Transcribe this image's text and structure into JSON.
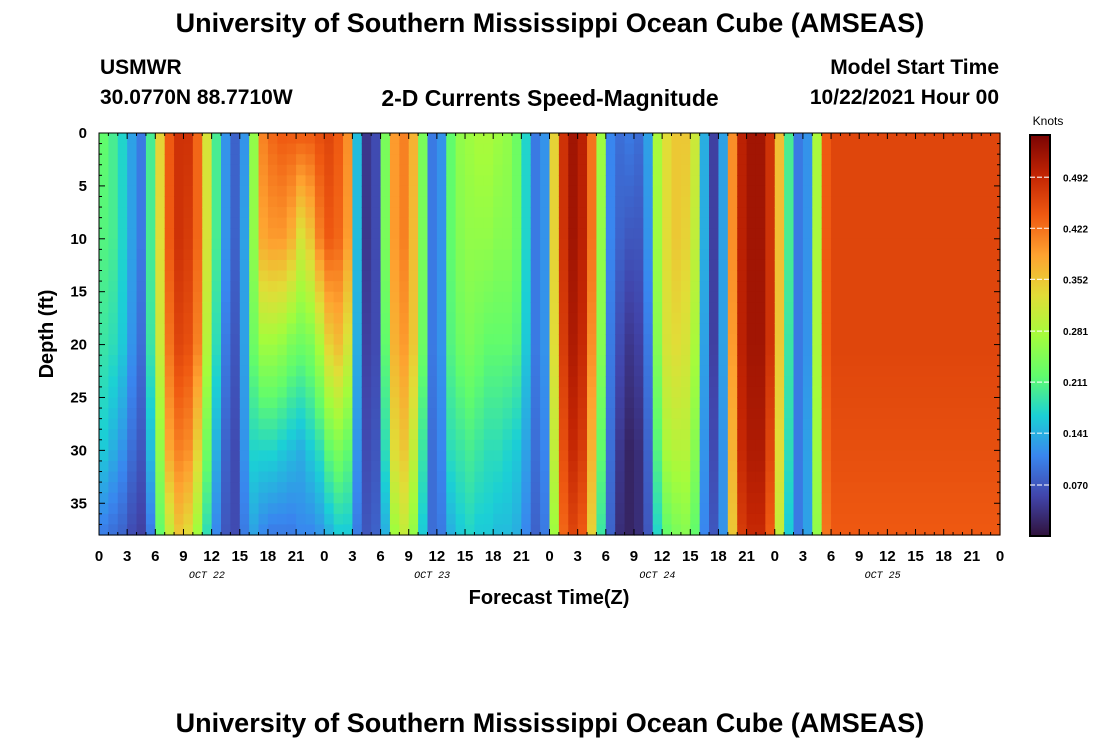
{
  "page": {
    "title_top": "University of Southern Mississippi Ocean Cube (AMSEAS)",
    "title_bottom": "University of Southern Mississippi Ocean Cube (AMSEAS)",
    "station": "USMWR",
    "coords": "30.0770N  88.7710W",
    "subtitle": "2-D Currents Speed-Magnitude",
    "start_label": "Model Start Time",
    "start_value": "10/22/2021 Hour 00"
  },
  "chart_data": {
    "type": "heatmap",
    "title": "2-D Currents Speed-Magnitude",
    "xlabel": "Forecast Time(Z)",
    "ylabel": "Depth (ft)",
    "x_unit": "forecast hour from 10/22/2021 00Z",
    "x_range": [
      0,
      96
    ],
    "y_range": [
      0,
      38
    ],
    "y_inverted": true,
    "x_tick_labels": [
      "0",
      "3",
      "6",
      "9",
      "12",
      "15",
      "18",
      "21",
      "0",
      "3",
      "6",
      "9",
      "12",
      "15",
      "18",
      "21",
      "0",
      "3",
      "6",
      "9",
      "12",
      "15",
      "18",
      "21",
      "0",
      "3",
      "6",
      "9",
      "12",
      "15",
      "18",
      "21",
      "0"
    ],
    "y_ticks": [
      0,
      5,
      10,
      15,
      20,
      25,
      30,
      35
    ],
    "date_labels": [
      {
        "text": "OCT 22",
        "hour": 11.5
      },
      {
        "text": "OCT 23",
        "hour": 35.5
      },
      {
        "text": "OCT 24",
        "hour": 59.5
      },
      {
        "text": "OCT 25",
        "hour": 83.5
      }
    ],
    "colorbar": {
      "label": "Knots",
      "min": 0.0,
      "max": 0.55,
      "ticks": [
        "0.070",
        "0.141",
        "0.211",
        "0.281",
        "0.352",
        "0.422",
        "0.492"
      ],
      "tick_values": [
        0.07,
        0.141,
        0.211,
        0.281,
        0.352,
        0.422,
        0.492
      ]
    },
    "depth_profile_depths": [
      0,
      10,
      20,
      30,
      38
    ],
    "speed_columns": [
      {
        "hour": 0,
        "speed": [
          0.22,
          0.21,
          0.19,
          0.16,
          0.1
        ]
      },
      {
        "hour": 1,
        "speed": [
          0.2,
          0.2,
          0.18,
          0.14,
          0.09
        ]
      },
      {
        "hour": 2,
        "speed": [
          0.17,
          0.17,
          0.16,
          0.12,
          0.08
        ]
      },
      {
        "hour": 3,
        "speed": [
          0.13,
          0.13,
          0.12,
          0.09,
          0.06
        ]
      },
      {
        "hour": 4,
        "speed": [
          0.1,
          0.1,
          0.09,
          0.07,
          0.05
        ]
      },
      {
        "hour": 5,
        "speed": [
          0.2,
          0.2,
          0.19,
          0.15,
          0.1
        ]
      },
      {
        "hour": 6,
        "speed": [
          0.34,
          0.33,
          0.31,
          0.26,
          0.22
        ]
      },
      {
        "hour": 7,
        "speed": [
          0.44,
          0.44,
          0.42,
          0.38,
          0.3
        ]
      },
      {
        "hour": 8,
        "speed": [
          0.48,
          0.48,
          0.46,
          0.41,
          0.35
        ]
      },
      {
        "hour": 9,
        "speed": [
          0.48,
          0.47,
          0.45,
          0.4,
          0.33
        ]
      },
      {
        "hour": 10,
        "speed": [
          0.43,
          0.43,
          0.41,
          0.34,
          0.27
        ]
      },
      {
        "hour": 11,
        "speed": [
          0.32,
          0.32,
          0.29,
          0.23,
          0.18
        ]
      },
      {
        "hour": 12,
        "speed": [
          0.2,
          0.2,
          0.18,
          0.14,
          0.11
        ]
      },
      {
        "hour": 13,
        "speed": [
          0.12,
          0.12,
          0.1,
          0.08,
          0.07
        ]
      },
      {
        "hour": 14,
        "speed": [
          0.08,
          0.08,
          0.07,
          0.06,
          0.06
        ]
      },
      {
        "hour": 15,
        "speed": [
          0.12,
          0.13,
          0.13,
          0.12,
          0.1
        ]
      },
      {
        "hour": 16,
        "speed": [
          0.26,
          0.26,
          0.23,
          0.17,
          0.13
        ]
      },
      {
        "hour": 17,
        "speed": [
          0.41,
          0.38,
          0.27,
          0.17,
          0.11
        ]
      },
      {
        "hour": 18,
        "speed": [
          0.43,
          0.39,
          0.27,
          0.17,
          0.1
        ]
      },
      {
        "hour": 19,
        "speed": [
          0.44,
          0.39,
          0.26,
          0.16,
          0.1
        ]
      },
      {
        "hour": 20,
        "speed": [
          0.44,
          0.37,
          0.24,
          0.15,
          0.1
        ]
      },
      {
        "hour": 21,
        "speed": [
          0.44,
          0.32,
          0.23,
          0.14,
          0.11
        ]
      },
      {
        "hour": 22,
        "speed": [
          0.44,
          0.35,
          0.24,
          0.16,
          0.11
        ]
      },
      {
        "hour": 23,
        "speed": [
          0.45,
          0.41,
          0.28,
          0.18,
          0.12
        ]
      },
      {
        "hour": 24,
        "speed": [
          0.46,
          0.44,
          0.34,
          0.22,
          0.14
        ]
      },
      {
        "hour": 25,
        "speed": [
          0.44,
          0.43,
          0.36,
          0.24,
          0.16
        ]
      },
      {
        "hour": 26,
        "speed": [
          0.4,
          0.39,
          0.32,
          0.22,
          0.16
        ]
      },
      {
        "hour": 27,
        "speed": [
          0.15,
          0.15,
          0.14,
          0.12,
          0.1
        ]
      },
      {
        "hour": 28,
        "speed": [
          0.04,
          0.04,
          0.05,
          0.06,
          0.07
        ]
      },
      {
        "hour": 29,
        "speed": [
          0.06,
          0.06,
          0.06,
          0.07,
          0.08
        ]
      },
      {
        "hour": 30,
        "speed": [
          0.24,
          0.24,
          0.22,
          0.18,
          0.14
        ]
      },
      {
        "hour": 31,
        "speed": [
          0.39,
          0.39,
          0.37,
          0.33,
          0.27
        ]
      },
      {
        "hour": 32,
        "speed": [
          0.41,
          0.41,
          0.39,
          0.35,
          0.3
        ]
      },
      {
        "hour": 33,
        "speed": [
          0.37,
          0.36,
          0.35,
          0.3,
          0.26
        ]
      },
      {
        "hour": 34,
        "speed": [
          0.24,
          0.24,
          0.23,
          0.19,
          0.16
        ]
      },
      {
        "hour": 35,
        "speed": [
          0.1,
          0.1,
          0.1,
          0.09,
          0.09
        ]
      },
      {
        "hour": 36,
        "speed": [
          0.12,
          0.12,
          0.12,
          0.11,
          0.1
        ]
      },
      {
        "hour": 37,
        "speed": [
          0.22,
          0.22,
          0.21,
          0.18,
          0.14
        ]
      },
      {
        "hour": 38,
        "speed": [
          0.26,
          0.25,
          0.23,
          0.19,
          0.16
        ]
      },
      {
        "hour": 39,
        "speed": [
          0.27,
          0.26,
          0.24,
          0.2,
          0.17
        ]
      },
      {
        "hour": 40,
        "speed": [
          0.28,
          0.26,
          0.23,
          0.19,
          0.16
        ]
      },
      {
        "hour": 41,
        "speed": [
          0.28,
          0.26,
          0.22,
          0.18,
          0.16
        ]
      },
      {
        "hour": 42,
        "speed": [
          0.27,
          0.25,
          0.22,
          0.18,
          0.15
        ]
      },
      {
        "hour": 43,
        "speed": [
          0.26,
          0.25,
          0.22,
          0.17,
          0.15
        ]
      },
      {
        "hour": 44,
        "speed": [
          0.23,
          0.23,
          0.21,
          0.16,
          0.14
        ]
      },
      {
        "hour": 45,
        "speed": [
          0.17,
          0.17,
          0.16,
          0.13,
          0.11
        ]
      },
      {
        "hour": 46,
        "speed": [
          0.1,
          0.1,
          0.1,
          0.09,
          0.08
        ]
      },
      {
        "hour": 47,
        "speed": [
          0.12,
          0.12,
          0.12,
          0.11,
          0.1
        ]
      },
      {
        "hour": 48,
        "speed": [
          0.34,
          0.34,
          0.33,
          0.3,
          0.27
        ]
      },
      {
        "hour": 49,
        "speed": [
          0.48,
          0.48,
          0.47,
          0.45,
          0.43
        ]
      },
      {
        "hour": 50,
        "speed": [
          0.52,
          0.52,
          0.51,
          0.49,
          0.46
        ]
      },
      {
        "hour": 51,
        "speed": [
          0.5,
          0.5,
          0.49,
          0.47,
          0.44
        ]
      },
      {
        "hour": 52,
        "speed": [
          0.42,
          0.42,
          0.4,
          0.37,
          0.34
        ]
      },
      {
        "hour": 53,
        "speed": [
          0.27,
          0.26,
          0.25,
          0.22,
          0.19
        ]
      },
      {
        "hour": 54,
        "speed": [
          0.11,
          0.11,
          0.1,
          0.09,
          0.08
        ]
      },
      {
        "hour": 55,
        "speed": [
          0.09,
          0.08,
          0.06,
          0.04,
          0.03
        ]
      },
      {
        "hour": 56,
        "speed": [
          0.1,
          0.07,
          0.04,
          0.02,
          0.02
        ]
      },
      {
        "hour": 57,
        "speed": [
          0.09,
          0.07,
          0.05,
          0.03,
          0.03
        ]
      },
      {
        "hour": 58,
        "speed": [
          0.13,
          0.12,
          0.1,
          0.08,
          0.07
        ]
      },
      {
        "hour": 59,
        "speed": [
          0.28,
          0.27,
          0.25,
          0.21,
          0.17
        ]
      },
      {
        "hour": 60,
        "speed": [
          0.33,
          0.33,
          0.32,
          0.28,
          0.22
        ]
      },
      {
        "hour": 61,
        "speed": [
          0.35,
          0.35,
          0.33,
          0.29,
          0.24
        ]
      },
      {
        "hour": 62,
        "speed": [
          0.35,
          0.34,
          0.32,
          0.29,
          0.25
        ]
      },
      {
        "hour": 63,
        "speed": [
          0.31,
          0.3,
          0.28,
          0.25,
          0.22
        ]
      },
      {
        "hour": 64,
        "speed": [
          0.14,
          0.14,
          0.13,
          0.12,
          0.11
        ]
      },
      {
        "hour": 65,
        "speed": [
          0.05,
          0.05,
          0.05,
          0.06,
          0.07
        ]
      },
      {
        "hour": 66,
        "speed": [
          0.13,
          0.13,
          0.13,
          0.12,
          0.12
        ]
      },
      {
        "hour": 67,
        "speed": [
          0.4,
          0.4,
          0.39,
          0.37,
          0.35
        ]
      },
      {
        "hour": 68,
        "speed": [
          0.5,
          0.5,
          0.5,
          0.49,
          0.47
        ]
      },
      {
        "hour": 69,
        "speed": [
          0.52,
          0.52,
          0.52,
          0.51,
          0.49
        ]
      },
      {
        "hour": 70,
        "speed": [
          0.52,
          0.52,
          0.52,
          0.51,
          0.49
        ]
      },
      {
        "hour": 71,
        "speed": [
          0.48,
          0.48,
          0.48,
          0.46,
          0.44
        ]
      },
      {
        "hour": 72,
        "speed": [
          0.36,
          0.36,
          0.35,
          0.33,
          0.3
        ]
      },
      {
        "hour": 73,
        "speed": [
          0.2,
          0.2,
          0.19,
          0.18,
          0.16
        ]
      },
      {
        "hour": 74,
        "speed": [
          0.1,
          0.1,
          0.1,
          0.1,
          0.1
        ]
      },
      {
        "hour": 75,
        "speed": [
          0.12,
          0.12,
          0.12,
          0.13,
          0.13
        ]
      },
      {
        "hour": 76,
        "speed": [
          0.28,
          0.28,
          0.28,
          0.27,
          0.26
        ]
      },
      {
        "hour": 77,
        "speed": [
          0.44,
          0.44,
          0.44,
          0.43,
          0.42
        ]
      },
      {
        "hour": 78,
        "speed": [
          0.46,
          0.46,
          0.46,
          0.45,
          0.44
        ]
      }
    ]
  }
}
